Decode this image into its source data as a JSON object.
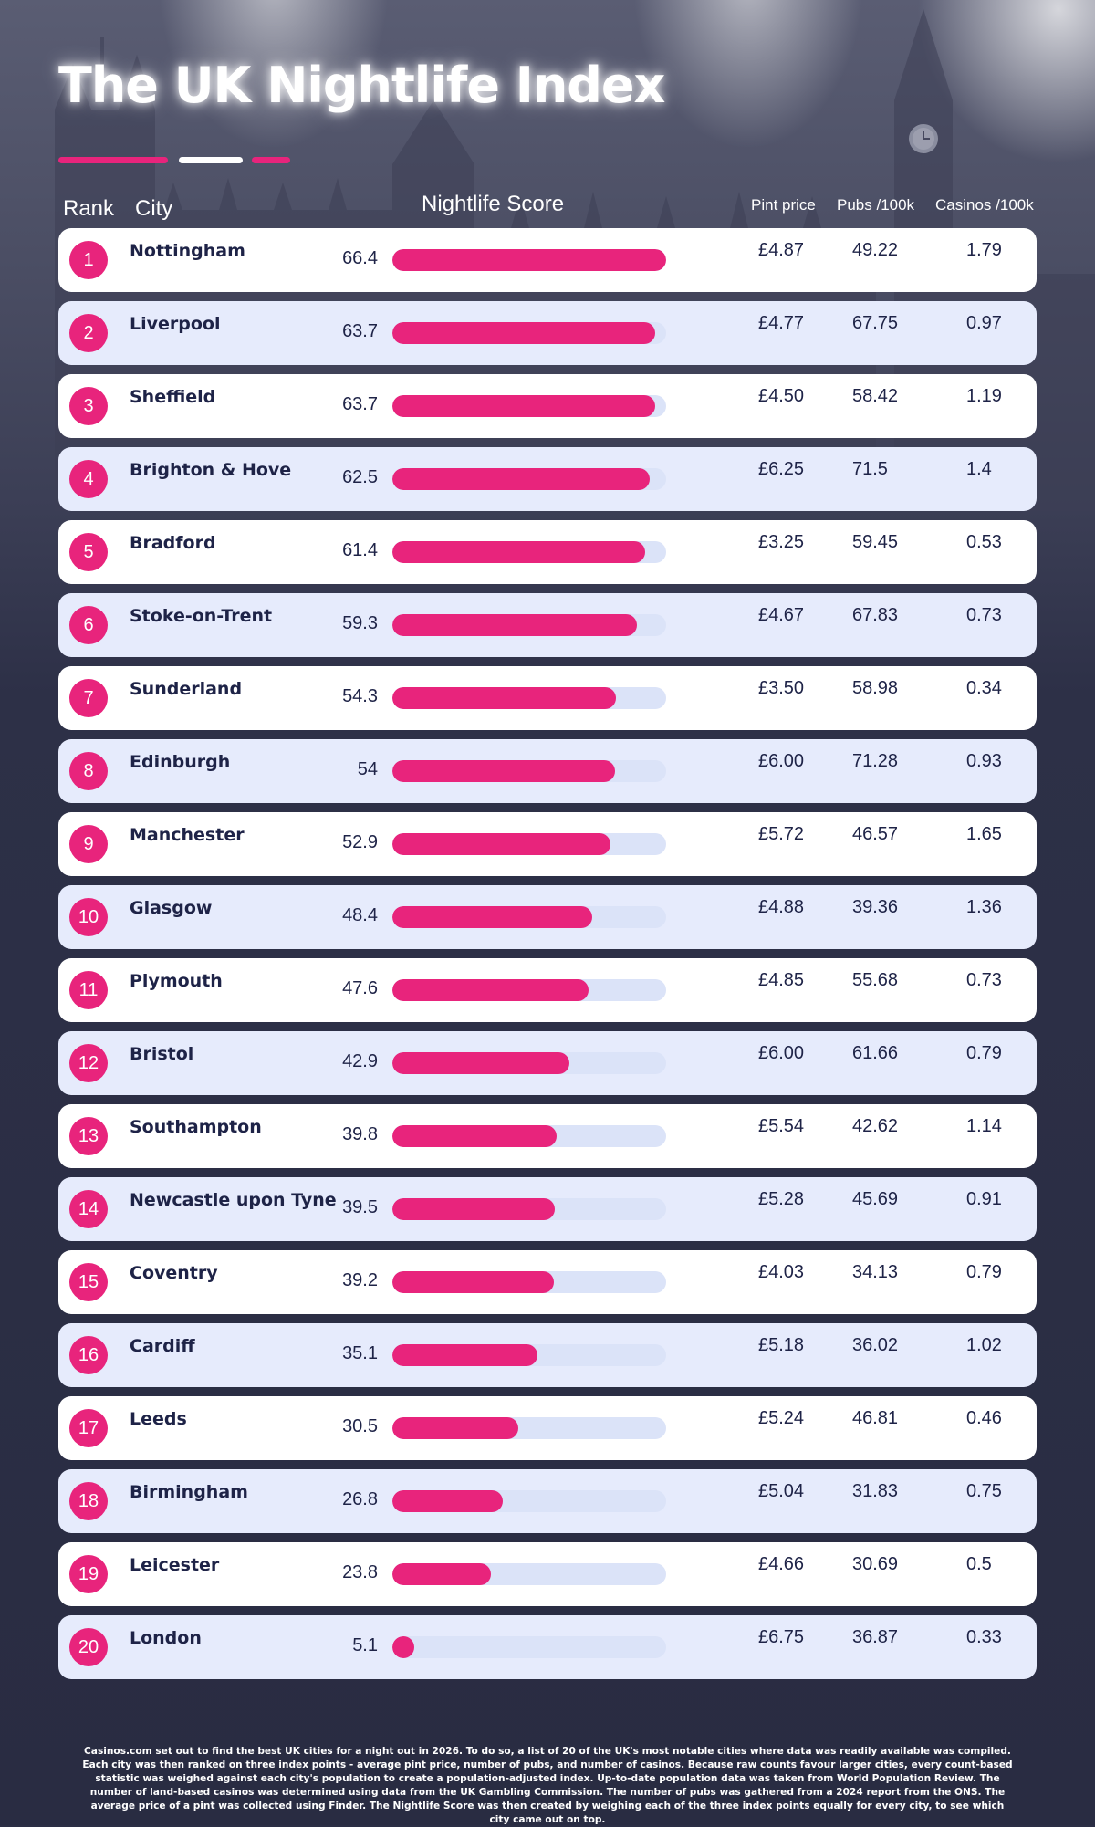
{
  "title": "The UK Nightlife Index",
  "colors": {
    "accent": "#e8247c",
    "row_light": "#ffffff",
    "row_alt": "#e6ebfc",
    "track": "#dbe3f8",
    "text_dark": "#1e2347",
    "background": "#2b2e45"
  },
  "columns": {
    "rank": "Rank",
    "city": "City",
    "score": "Nightlife Score",
    "pint": "Pint price",
    "pubs": "Pubs /100k",
    "casinos": "Casinos /100k"
  },
  "chart_data": {
    "type": "bar",
    "title": "The UK Nightlife Index",
    "xlabel": "",
    "ylabel": "Nightlife Score",
    "ylim": [
      0,
      66.4
    ],
    "categories": [
      "Nottingham",
      "Liverpool",
      "Sheffield",
      "Brighton & Hove",
      "Bradford",
      "Stoke-on-Trent",
      "Sunderland",
      "Edinburgh",
      "Manchester",
      "Glasgow",
      "Plymouth",
      "Bristol",
      "Southampton",
      "Newcastle upon Tyne",
      "Coventry",
      "Cardiff",
      "Leeds",
      "Birmingham",
      "Leicester",
      "London"
    ],
    "values": [
      66.4,
      63.7,
      63.7,
      62.5,
      61.4,
      59.3,
      54.3,
      54,
      52.9,
      48.4,
      47.6,
      42.9,
      39.8,
      39.5,
      39.2,
      35.1,
      30.5,
      26.8,
      23.8,
      5.1
    ]
  },
  "rows": [
    {
      "rank": "1",
      "city": "Nottingham",
      "score": "66.4",
      "pint": "£4.87",
      "pubs": "49.22",
      "casinos": "1.79"
    },
    {
      "rank": "2",
      "city": "Liverpool",
      "score": "63.7",
      "pint": "£4.77",
      "pubs": "67.75",
      "casinos": "0.97"
    },
    {
      "rank": "3",
      "city": "Sheffield",
      "score": "63.7",
      "pint": "£4.50",
      "pubs": "58.42",
      "casinos": "1.19"
    },
    {
      "rank": "4",
      "city": "Brighton & Hove",
      "score": "62.5",
      "pint": "£6.25",
      "pubs": "71.5",
      "casinos": "1.4"
    },
    {
      "rank": "5",
      "city": "Bradford",
      "score": "61.4",
      "pint": "£3.25",
      "pubs": "59.45",
      "casinos": "0.53"
    },
    {
      "rank": "6",
      "city": "Stoke-on-Trent",
      "score": "59.3",
      "pint": "£4.67",
      "pubs": "67.83",
      "casinos": "0.73"
    },
    {
      "rank": "7",
      "city": "Sunderland",
      "score": "54.3",
      "pint": "£3.50",
      "pubs": "58.98",
      "casinos": "0.34"
    },
    {
      "rank": "8",
      "city": "Edinburgh",
      "score": "54",
      "pint": "£6.00",
      "pubs": "71.28",
      "casinos": "0.93"
    },
    {
      "rank": "9",
      "city": "Manchester",
      "score": "52.9",
      "pint": "£5.72",
      "pubs": "46.57",
      "casinos": "1.65"
    },
    {
      "rank": "10",
      "city": "Glasgow",
      "score": "48.4",
      "pint": "£4.88",
      "pubs": "39.36",
      "casinos": "1.36"
    },
    {
      "rank": "11",
      "city": "Plymouth",
      "score": "47.6",
      "pint": "£4.85",
      "pubs": "55.68",
      "casinos": "0.73"
    },
    {
      "rank": "12",
      "city": "Bristol",
      "score": "42.9",
      "pint": "£6.00",
      "pubs": "61.66",
      "casinos": "0.79"
    },
    {
      "rank": "13",
      "city": "Southampton",
      "score": "39.8",
      "pint": "£5.54",
      "pubs": "42.62",
      "casinos": "1.14"
    },
    {
      "rank": "14",
      "city": "Newcastle upon Tyne",
      "score": "39.5",
      "pint": "£5.28",
      "pubs": "45.69",
      "casinos": "0.91"
    },
    {
      "rank": "15",
      "city": "Coventry",
      "score": "39.2",
      "pint": "£4.03",
      "pubs": "34.13",
      "casinos": "0.79"
    },
    {
      "rank": "16",
      "city": "Cardiff",
      "score": "35.1",
      "pint": "£5.18",
      "pubs": "36.02",
      "casinos": "1.02"
    },
    {
      "rank": "17",
      "city": "Leeds",
      "score": "30.5",
      "pint": "£5.24",
      "pubs": "46.81",
      "casinos": "0.46"
    },
    {
      "rank": "18",
      "city": "Birmingham",
      "score": "26.8",
      "pint": "£5.04",
      "pubs": "31.83",
      "casinos": "0.75"
    },
    {
      "rank": "19",
      "city": "Leicester",
      "score": "23.8",
      "pint": "£4.66",
      "pubs": "30.69",
      "casinos": "0.5"
    },
    {
      "rank": "20",
      "city": "London",
      "score": "5.1",
      "pint": "£6.75",
      "pubs": "36.87",
      "casinos": "0.33"
    }
  ],
  "footnote": "Casinos.com set out to find the best UK cities for a night out in 2026. To do so, a list of 20 of the UK's most notable cities where data was readily available was compiled. Each city was then ranked on three index points - average pint price, number of pubs, and number of casinos. Because raw counts favour larger cities, every count-based statistic was weighed against each city's population to create a population-adjusted index. Up-to-date population data was taken from World Population Review. The number of land-based casinos was determined using data from the UK Gambling Commission. The number of pubs was gathered from a 2024 report from the ONS. The average price of a pint was collected using Finder. The Nightlife Score was then created by weighing each of the three index points equally for every city, to see which city came out on top."
}
